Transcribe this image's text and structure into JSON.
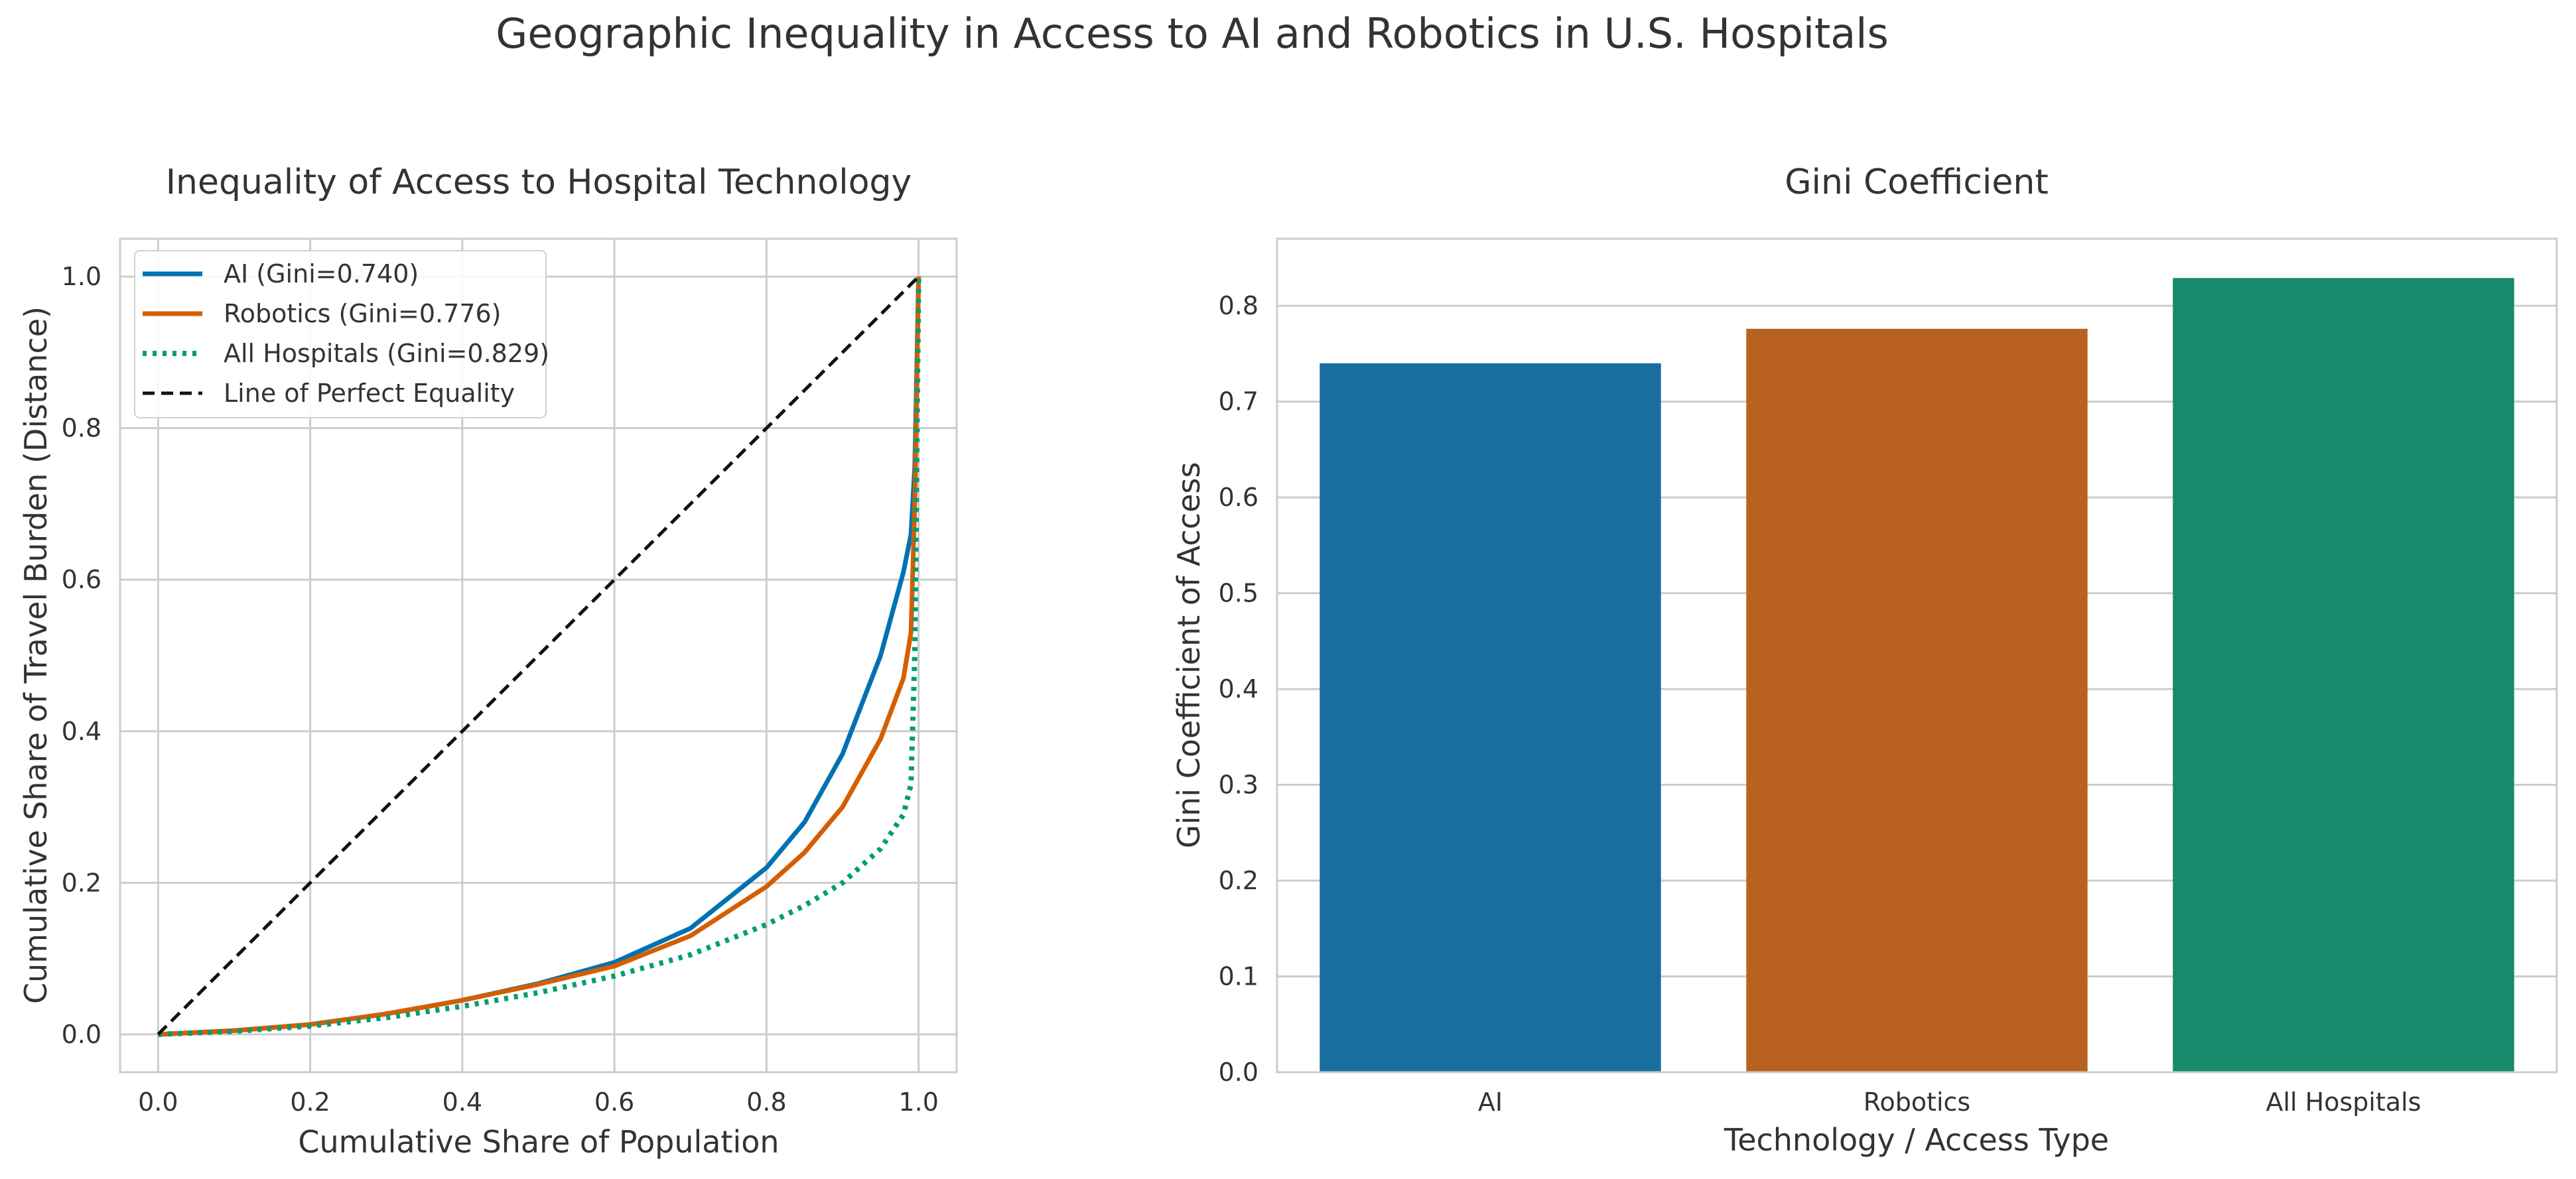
{
  "figure": {
    "title": "Geographic Inequality in Access to AI and Robotics in U.S. Hospitals"
  },
  "chart_data": [
    {
      "type": "line",
      "title": "Inequality of Access to Hospital Technology",
      "xlabel": "Cumulative Share of Population",
      "ylabel": "Cumulative Share of Travel Burden (Distance)",
      "xlim": [
        -0.05,
        1.05
      ],
      "ylim": [
        -0.05,
        1.05
      ],
      "xticks": [
        "0.0",
        "0.2",
        "0.4",
        "0.6",
        "0.8",
        "1.0"
      ],
      "yticks": [
        "0.0",
        "0.2",
        "0.4",
        "0.6",
        "0.8",
        "1.0"
      ],
      "grid": true,
      "legend": "upper-left",
      "series": [
        {
          "name": "AI (Gini=0.740)",
          "color": "#0072b2",
          "style": "solid",
          "x": [
            0,
            0.1,
            0.2,
            0.3,
            0.4,
            0.5,
            0.6,
            0.7,
            0.8,
            0.85,
            0.9,
            0.95,
            0.98,
            0.99,
            0.995,
            1.0
          ],
          "y": [
            0,
            0.005,
            0.013,
            0.027,
            0.045,
            0.067,
            0.095,
            0.14,
            0.22,
            0.28,
            0.37,
            0.5,
            0.61,
            0.66,
            0.75,
            1.0
          ]
        },
        {
          "name": "Robotics (Gini=0.776)",
          "color": "#d55e00",
          "style": "solid",
          "x": [
            0,
            0.1,
            0.2,
            0.3,
            0.4,
            0.5,
            0.6,
            0.7,
            0.8,
            0.85,
            0.9,
            0.95,
            0.98,
            0.99,
            0.995,
            1.0
          ],
          "y": [
            0,
            0.005,
            0.013,
            0.027,
            0.045,
            0.066,
            0.09,
            0.13,
            0.195,
            0.24,
            0.3,
            0.39,
            0.47,
            0.53,
            0.7,
            1.0
          ]
        },
        {
          "name": "All Hospitals (Gini=0.829)",
          "color": "#009e73",
          "style": "dotted",
          "x": [
            0,
            0.1,
            0.2,
            0.3,
            0.4,
            0.5,
            0.6,
            0.7,
            0.8,
            0.85,
            0.9,
            0.95,
            0.98,
            0.99,
            0.995,
            1.0
          ],
          "y": [
            0,
            0.004,
            0.011,
            0.022,
            0.037,
            0.055,
            0.077,
            0.105,
            0.145,
            0.17,
            0.2,
            0.245,
            0.29,
            0.33,
            0.5,
            1.0
          ]
        },
        {
          "name": "Line of Perfect Equality",
          "color": "#111111",
          "style": "dashed",
          "x": [
            0,
            1
          ],
          "y": [
            0,
            1
          ]
        }
      ]
    },
    {
      "type": "bar",
      "title": "Gini Coefficient",
      "xlabel": "Technology / Access Type",
      "ylabel": "Gini Coefficient of Access",
      "categories": [
        "AI",
        "Robotics",
        "All Hospitals"
      ],
      "values": [
        0.74,
        0.776,
        0.829
      ],
      "colors": [
        "#1a6e9f",
        "#b9621f",
        "#168a6a"
      ],
      "ylim": [
        0,
        0.87
      ],
      "yticks": [
        "0.0",
        "0.1",
        "0.2",
        "0.3",
        "0.4",
        "0.5",
        "0.6",
        "0.7",
        "0.8"
      ],
      "grid": true
    }
  ]
}
